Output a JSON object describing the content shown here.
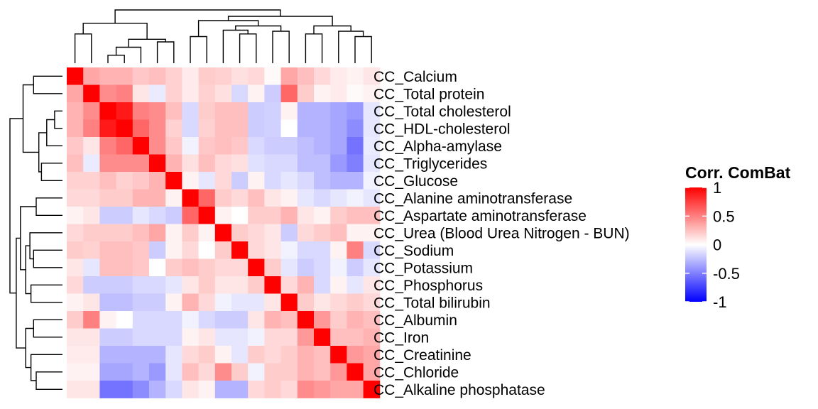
{
  "chart_data": {
    "type": "heatmap",
    "rows": [
      "CC_Calcium",
      "CC_Total protein",
      "CC_Total cholesterol",
      "CC_HDL-cholesterol",
      "CC_Alpha-amylase",
      "CC_Triglycerides",
      "CC_Glucose",
      "CC_Alanine aminotransferase",
      "CC_Aspartate aminotransferase",
      "CC_Urea (Blood Urea Nitrogen - BUN)",
      "CC_Sodium",
      "CC_Potassium",
      "CC_Phosphorus",
      "CC_Total bilirubin",
      "CC_Albumin",
      "CC_Iron",
      "CC_Creatinine",
      "CC_Chloride",
      "CC_Alkaline phosphatase"
    ],
    "values": [
      [
        1.0,
        0.35,
        0.3,
        0.3,
        0.22,
        0.25,
        0.18,
        0.08,
        0.2,
        0.18,
        0.12,
        0.15,
        0.02,
        0.35,
        0.25,
        0.15,
        0.08,
        0.05,
        0.1
      ],
      [
        0.35,
        1.0,
        0.45,
        0.5,
        0.1,
        -0.08,
        0.18,
        0.08,
        0.18,
        0.12,
        -0.15,
        0.05,
        -0.2,
        0.6,
        0.2,
        0.05,
        0.08,
        0.02,
        0.05
      ],
      [
        0.3,
        0.45,
        1.0,
        0.9,
        0.5,
        0.45,
        0.25,
        -0.15,
        0.2,
        0.25,
        0.25,
        -0.2,
        -0.18,
        0.05,
        -0.3,
        -0.3,
        -0.35,
        -0.4,
        -0.1
      ],
      [
        0.3,
        0.5,
        0.9,
        1.0,
        0.6,
        0.45,
        0.18,
        -0.15,
        0.18,
        0.25,
        0.25,
        -0.2,
        -0.18,
        0.0,
        -0.3,
        -0.3,
        -0.35,
        -0.45,
        -0.1
      ],
      [
        0.22,
        0.1,
        0.5,
        0.6,
        1.0,
        0.45,
        0.22,
        -0.05,
        0.22,
        0.25,
        0.22,
        -0.15,
        -0.2,
        -0.2,
        -0.25,
        -0.3,
        -0.35,
        -0.55,
        -0.08
      ],
      [
        0.25,
        -0.08,
        0.45,
        0.45,
        0.45,
        1.0,
        0.3,
        0.12,
        0.25,
        0.15,
        0.12,
        -0.12,
        -0.15,
        -0.15,
        -0.25,
        -0.25,
        -0.4,
        -0.5,
        -0.1
      ],
      [
        0.18,
        0.18,
        0.25,
        0.18,
        0.22,
        0.3,
        1.0,
        0.05,
        -0.1,
        0.15,
        -0.2,
        0.05,
        -0.15,
        -0.1,
        -0.15,
        -0.25,
        -0.3,
        -0.3,
        -0.05
      ],
      [
        0.15,
        0.15,
        0.2,
        0.2,
        0.3,
        0.3,
        0.05,
        1.0,
        0.6,
        0.2,
        0.15,
        0.25,
        0.1,
        0.05,
        -0.1,
        -0.15,
        -0.1,
        -0.05,
        -0.1
      ],
      [
        0.05,
        0.1,
        -0.2,
        -0.2,
        -0.1,
        -0.15,
        -0.2,
        0.6,
        1.0,
        0.05,
        0.0,
        0.2,
        0.2,
        0.3,
        0.1,
        0.05,
        0.2,
        0.25,
        0.25
      ],
      [
        0.15,
        0.2,
        0.2,
        0.2,
        0.25,
        0.35,
        0.05,
        0.2,
        0.05,
        1.0,
        0.2,
        0.15,
        0.1,
        -0.2,
        0.15,
        0.2,
        0.25,
        0.05,
        0.05
      ],
      [
        0.2,
        0.18,
        0.25,
        0.25,
        0.22,
        -0.2,
        0.05,
        0.15,
        0.0,
        0.2,
        1.0,
        0.15,
        0.1,
        -0.05,
        -0.15,
        -0.15,
        0.05,
        0.5,
        -0.15
      ],
      [
        0.1,
        -0.1,
        0.25,
        0.25,
        0.22,
        0.0,
        0.2,
        0.25,
        0.2,
        0.15,
        0.15,
        1.0,
        0.2,
        -0.1,
        -0.2,
        -0.15,
        -0.05,
        -0.2,
        -0.1
      ],
      [
        0.15,
        -0.2,
        -0.2,
        -0.2,
        -0.15,
        -0.15,
        -0.1,
        0.1,
        0.2,
        0.1,
        0.1,
        0.2,
        1.0,
        0.15,
        0.3,
        -0.15,
        0.05,
        -0.1,
        0.1
      ],
      [
        0.05,
        0.1,
        -0.25,
        -0.25,
        -0.2,
        -0.2,
        0.05,
        0.3,
        0.15,
        -0.05,
        -0.1,
        -0.1,
        0.1,
        1.0,
        0.2,
        0.1,
        0.15,
        0.2,
        0.15
      ],
      [
        0.2,
        0.5,
        0.05,
        0.0,
        -0.15,
        -0.15,
        -0.15,
        -0.05,
        -0.15,
        -0.2,
        -0.2,
        0.1,
        0.3,
        0.25,
        1.0,
        0.4,
        0.2,
        0.3,
        0.25
      ],
      [
        0.1,
        0.1,
        -0.2,
        -0.2,
        -0.15,
        -0.15,
        -0.15,
        0.05,
        0.1,
        -0.1,
        -0.1,
        -0.05,
        0.15,
        0.15,
        0.4,
        1.0,
        0.25,
        0.25,
        0.3
      ],
      [
        0.08,
        0.08,
        -0.3,
        -0.3,
        -0.3,
        -0.3,
        -0.1,
        0.15,
        0.2,
        0.05,
        -0.1,
        0.2,
        0.15,
        0.2,
        0.3,
        0.25,
        1.0,
        0.4,
        0.35
      ],
      [
        0.05,
        0.05,
        -0.35,
        -0.35,
        -0.3,
        -0.4,
        -0.1,
        0.25,
        0.15,
        0.45,
        0.2,
        -0.05,
        0.2,
        0.2,
        0.3,
        0.25,
        0.4,
        1.0,
        0.35
      ],
      [
        0.1,
        0.1,
        -0.55,
        -0.55,
        -0.45,
        -0.3,
        -0.15,
        0.1,
        0.05,
        -0.3,
        -0.3,
        0.15,
        0.2,
        0.15,
        0.45,
        0.4,
        0.35,
        0.35,
        1.0
      ]
    ],
    "legend": {
      "title": "Corr. ComBat",
      "ticks": [
        "1",
        "0.5",
        "0",
        "-0.5",
        "-1"
      ],
      "tick_values": [
        1,
        0.5,
        0,
        -0.5,
        -1
      ],
      "range": [
        -1,
        1
      ],
      "colors": {
        "low": "#0000FF",
        "mid": "#FFFFFF",
        "high": "#FF0000"
      }
    },
    "row_dendrogram": true,
    "column_dendrogram": true,
    "grid": false
  }
}
